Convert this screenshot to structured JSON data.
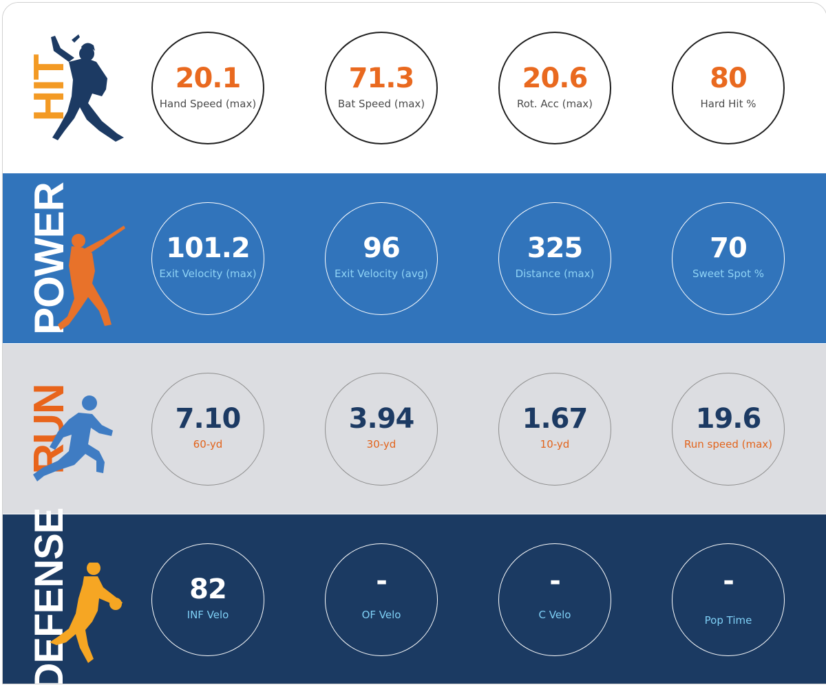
{
  "sections": [
    {
      "title": "HIT",
      "icon": "batter-icon",
      "stats": [
        {
          "value": "20.1",
          "label": "Hand Speed (max)"
        },
        {
          "value": "71.3",
          "label": "Bat Speed (max)"
        },
        {
          "value": "20.6",
          "label": "Rot. Acc (max)"
        },
        {
          "value": "80",
          "label": "Hard Hit %"
        }
      ]
    },
    {
      "title": "POWER",
      "icon": "power-hitter-icon",
      "stats": [
        {
          "value": "101.2",
          "label": "Exit Velocity (max)"
        },
        {
          "value": "96",
          "label": "Exit Velocity (avg)"
        },
        {
          "value": "325",
          "label": "Distance (max)"
        },
        {
          "value": "70",
          "label": "Sweet Spot %"
        }
      ]
    },
    {
      "title": "RUN",
      "icon": "runner-icon",
      "stats": [
        {
          "value": "7.10",
          "label": "60-yd"
        },
        {
          "value": "3.94",
          "label": "30-yd"
        },
        {
          "value": "1.67",
          "label": "10-yd"
        },
        {
          "value": "19.6",
          "label": "Run speed (max)"
        }
      ]
    },
    {
      "title": "DEFENSE",
      "icon": "fielder-icon",
      "stats": [
        {
          "value": "82",
          "label": "INF Velo"
        },
        {
          "value": "-",
          "label": "OF Velo"
        },
        {
          "value": "-",
          "label": "C Velo"
        },
        {
          "value": "-",
          "label": "Pop Time"
        }
      ]
    }
  ],
  "colors": {
    "orange": "#e9691f",
    "power_blue": "#3174bb",
    "run_gray": "#dcdde1",
    "defense_navy": "#1b3a62",
    "light_blue": "#8fd3f5"
  }
}
